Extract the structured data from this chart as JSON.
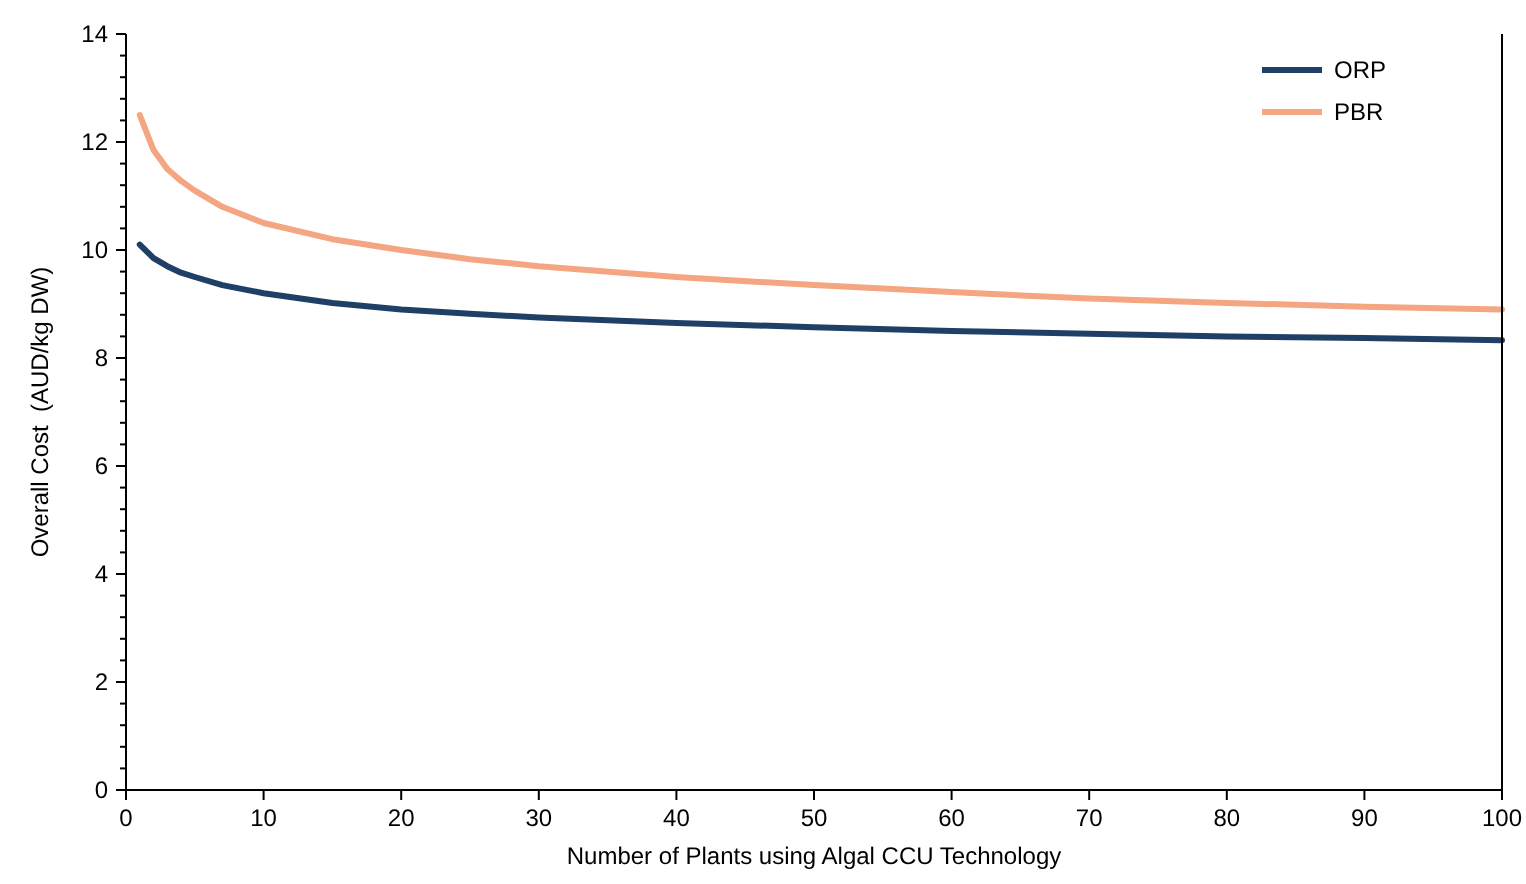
{
  "chart_data": {
    "type": "line",
    "xlabel": "Number of Plants using Algal CCU Technology",
    "ylabel": "Overall Cost  (AUD/kg DW)",
    "x": [
      1,
      2,
      3,
      4,
      5,
      7,
      10,
      15,
      20,
      25,
      30,
      40,
      50,
      60,
      70,
      80,
      90,
      100
    ],
    "xlim": [
      0,
      100
    ],
    "xticks": [
      0,
      10,
      20,
      30,
      40,
      50,
      60,
      70,
      80,
      90,
      100
    ],
    "ylim": [
      0,
      14
    ],
    "yticks": [
      0,
      {
        "value": 0.4,
        "label": null
      },
      {
        "value": 0.8,
        "label": null
      },
      {
        "value": 1.2,
        "label": null
      },
      {
        "value": 1.6,
        "label": null
      },
      2,
      {
        "value": 2.4,
        "label": null
      },
      {
        "value": 2.8,
        "label": null
      },
      {
        "value": 3.2,
        "label": null
      },
      {
        "value": 3.6,
        "label": null
      },
      4,
      {
        "value": 4.4,
        "label": null
      },
      {
        "value": 4.8,
        "label": null
      },
      {
        "value": 5.2,
        "label": null
      },
      {
        "value": 5.6,
        "label": null
      },
      6,
      {
        "value": 6.4,
        "label": null
      },
      {
        "value": 6.8,
        "label": null
      },
      {
        "value": 7.2,
        "label": null
      },
      {
        "value": 7.6,
        "label": null
      },
      8,
      {
        "value": 8.4,
        "label": null
      },
      {
        "value": 8.8,
        "label": null
      },
      {
        "value": 9.2,
        "label": null
      },
      {
        "value": 9.6,
        "label": null
      },
      10,
      {
        "value": 10.4,
        "label": null
      },
      {
        "value": 10.8,
        "label": null
      },
      {
        "value": 11.2,
        "label": null
      },
      {
        "value": 11.6,
        "label": null
      },
      12,
      {
        "value": 12.4,
        "label": null
      },
      {
        "value": 12.8,
        "label": null
      },
      {
        "value": 13.2,
        "label": null
      },
      {
        "value": 13.6,
        "label": null
      },
      14
    ],
    "series": [
      {
        "name": "ORP",
        "color": "#1f3f66",
        "values": [
          10.1,
          9.85,
          9.7,
          9.58,
          9.5,
          9.35,
          9.2,
          9.02,
          8.9,
          8.82,
          8.75,
          8.65,
          8.57,
          8.5,
          8.45,
          8.4,
          8.37,
          8.33
        ]
      },
      {
        "name": "PBR",
        "color": "#f4a582",
        "values": [
          12.5,
          11.85,
          11.5,
          11.28,
          11.1,
          10.8,
          10.5,
          10.2,
          10.0,
          9.83,
          9.7,
          9.5,
          9.35,
          9.22,
          9.1,
          9.02,
          8.95,
          8.9
        ]
      }
    ],
    "legend": "top right",
    "grid": false,
    "marker": "none",
    "line_style": "solid"
  }
}
